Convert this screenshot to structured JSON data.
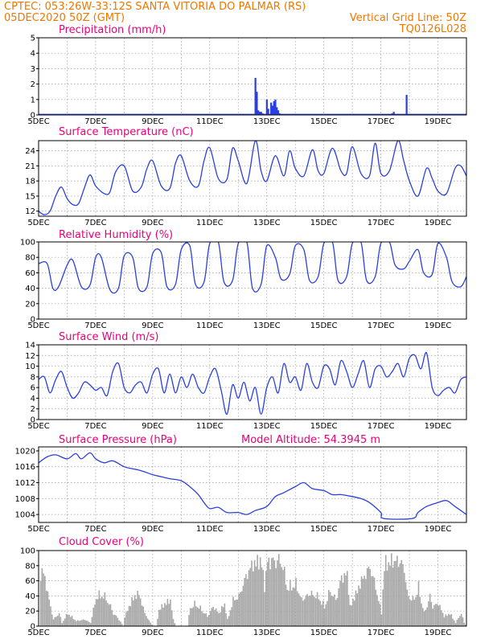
{
  "header": {
    "line1": "CPTEC:   053:26W-33:12S   SANTA VITORIA DO PALMAR (RS)",
    "line2_left": "05DEC2020 50Z (GMT)",
    "line2_right": "Vertical Grid Line: 50Z",
    "line3_right": "TQ0126L028"
  },
  "colors": {
    "series": "#2a3fe0",
    "cloud": "#a8a8a8",
    "header": "#ee7700",
    "title": "#e8007a",
    "grid": "#9a9a9a"
  },
  "chart_data": [
    {
      "id": "precip",
      "type": "bar",
      "title": "Precipitation (mm/h)",
      "ylim": [
        0,
        5
      ],
      "yticks": [
        "0",
        "1",
        "2",
        "3",
        "4",
        "5"
      ],
      "xticks": [
        "5DEC",
        "7DEC",
        "9DEC",
        "11DEC",
        "13DEC",
        "15DEC",
        "17DEC",
        "19DEC"
      ],
      "xlim_days": [
        5,
        20
      ],
      "x_days": [
        12.6,
        12.65,
        12.7,
        12.75,
        12.8,
        12.85,
        13.0,
        13.05,
        13.15,
        13.2,
        13.25,
        13.3,
        13.35,
        13.4,
        13.45,
        17.4,
        17.45,
        17.9
      ],
      "values": [
        2.4,
        1.5,
        0.3,
        0.2,
        0.2,
        0.1,
        1.0,
        0.4,
        0.8,
        0.6,
        0.9,
        1.0,
        0.5,
        0.3,
        0.1,
        0.1,
        0.2,
        1.3
      ]
    },
    {
      "id": "temp",
      "type": "line",
      "title": "Surface Temperature (nC)",
      "ylim": [
        11,
        26
      ],
      "yticks": [
        "12",
        "15",
        "18",
        "21",
        "24"
      ],
      "xticks": [
        "5DEC",
        "7DEC",
        "9DEC",
        "11DEC",
        "13DEC",
        "15DEC",
        "17DEC",
        "19DEC"
      ],
      "xlim_days": [
        5,
        20
      ],
      "x_days": [
        5.0,
        5.2,
        5.4,
        5.6,
        5.8,
        6.0,
        6.2,
        6.4,
        6.6,
        6.8,
        7.0,
        7.3,
        7.5,
        7.7,
        8.0,
        8.3,
        8.6,
        8.8,
        9.0,
        9.3,
        9.6,
        9.8,
        10.0,
        10.3,
        10.6,
        10.8,
        11.0,
        11.3,
        11.6,
        11.8,
        12.0,
        12.3,
        12.6,
        12.8,
        13.0,
        13.3,
        13.6,
        13.8,
        14.0,
        14.3,
        14.6,
        14.8,
        15.0,
        15.3,
        15.6,
        15.8,
        16.0,
        16.3,
        16.6,
        16.8,
        17.0,
        17.3,
        17.6,
        17.8,
        18.0,
        18.3,
        18.6,
        18.8,
        19.0,
        19.3,
        19.6,
        19.8,
        20.0
      ],
      "values": [
        12.0,
        11.3,
        12.0,
        15.0,
        16.8,
        14.5,
        13.3,
        13.5,
        16.5,
        19.2,
        17.0,
        15.5,
        15.8,
        19.8,
        21.0,
        16.0,
        16.8,
        20.5,
        22.0,
        17.0,
        16.5,
        21.5,
        23.0,
        18.0,
        17.0,
        22.0,
        24.6,
        18.5,
        18.3,
        24.5,
        22.0,
        17.5,
        26.0,
        20.0,
        18.0,
        23.0,
        19.0,
        24.0,
        20.5,
        19.0,
        24.2,
        20.0,
        19.5,
        24.5,
        20.0,
        19.5,
        24.8,
        19.5,
        19.0,
        25.5,
        19.5,
        20.0,
        26.0,
        22.0,
        18.0,
        15.0,
        20.5,
        18.5,
        16.0,
        15.5,
        20.5,
        21.0,
        19.0
      ]
    },
    {
      "id": "rh",
      "type": "line",
      "title": "Relative Humidity (%)",
      "ylim": [
        0,
        100
      ],
      "yticks": [
        "0",
        "20",
        "40",
        "60",
        "80",
        "100"
      ],
      "xticks": [
        "5DEC",
        "7DEC",
        "9DEC",
        "11DEC",
        "13DEC",
        "15DEC",
        "17DEC",
        "19DEC"
      ],
      "xlim_days": [
        5,
        20
      ],
      "x_days": [
        5.0,
        5.3,
        5.5,
        5.7,
        6.0,
        6.2,
        6.5,
        6.8,
        7.0,
        7.2,
        7.5,
        7.8,
        8.0,
        8.3,
        8.5,
        8.8,
        9.0,
        9.3,
        9.5,
        9.8,
        10.0,
        10.3,
        10.5,
        10.8,
        11.0,
        11.3,
        11.5,
        11.8,
        12.0,
        12.3,
        12.5,
        12.8,
        13.0,
        13.3,
        13.5,
        13.8,
        14.0,
        14.3,
        14.5,
        14.8,
        15.0,
        15.3,
        15.5,
        15.8,
        16.0,
        16.3,
        16.5,
        16.8,
        17.0,
        17.3,
        17.5,
        17.8,
        18.0,
        18.3,
        18.5,
        18.8,
        19.0,
        19.3,
        19.5,
        19.8,
        20.0
      ],
      "values": [
        72,
        72,
        40,
        42,
        70,
        76,
        42,
        44,
        80,
        80,
        38,
        40,
        82,
        80,
        40,
        42,
        85,
        86,
        42,
        45,
        90,
        95,
        45,
        48,
        98,
        100,
        48,
        50,
        98,
        100,
        40,
        45,
        95,
        80,
        52,
        58,
        95,
        90,
        50,
        55,
        98,
        100,
        50,
        55,
        98,
        100,
        50,
        55,
        98,
        100,
        70,
        65,
        75,
        90,
        60,
        58,
        98,
        80,
        48,
        42,
        55
      ]
    },
    {
      "id": "wind",
      "type": "line",
      "title": "Surface Wind (m/s)",
      "ylim": [
        0,
        14
      ],
      "yticks": [
        "0",
        "2",
        "4",
        "6",
        "8",
        "10",
        "12",
        "14"
      ],
      "xticks": [
        "5DEC",
        "7DEC",
        "9DEC",
        "11DEC",
        "13DEC",
        "15DEC",
        "17DEC",
        "19DEC"
      ],
      "xlim_days": [
        5,
        20
      ],
      "x_days": [
        5.0,
        5.2,
        5.4,
        5.6,
        5.8,
        6.0,
        6.2,
        6.4,
        6.6,
        6.8,
        7.0,
        7.2,
        7.4,
        7.6,
        7.8,
        8.0,
        8.2,
        8.4,
        8.6,
        8.8,
        9.0,
        9.2,
        9.4,
        9.6,
        9.8,
        10.0,
        10.2,
        10.4,
        10.6,
        10.8,
        11.0,
        11.2,
        11.4,
        11.6,
        11.8,
        12.0,
        12.2,
        12.4,
        12.6,
        12.8,
        13.0,
        13.2,
        13.4,
        13.6,
        13.8,
        14.0,
        14.2,
        14.4,
        14.6,
        14.8,
        15.0,
        15.2,
        15.4,
        15.6,
        15.8,
        16.0,
        16.2,
        16.4,
        16.6,
        16.8,
        17.0,
        17.2,
        17.4,
        17.6,
        17.8,
        18.0,
        18.2,
        18.4,
        18.6,
        18.8,
        19.0,
        19.2,
        19.4,
        19.6,
        19.8,
        20.0
      ],
      "values": [
        7.5,
        8.0,
        5.0,
        7.5,
        9.0,
        6.0,
        4.0,
        5.0,
        7.0,
        6.5,
        5.5,
        6.0,
        4.5,
        9.0,
        10.5,
        6.0,
        5.0,
        6.5,
        7.0,
        5.0,
        8.5,
        9.5,
        5.0,
        8.5,
        5.0,
        8.0,
        6.0,
        8.5,
        6.0,
        5.0,
        8.0,
        9.5,
        5.5,
        1.0,
        6.5,
        4.0,
        7.0,
        3.5,
        6.0,
        1.0,
        6.0,
        8.0,
        5.0,
        10.5,
        7.0,
        8.0,
        5.5,
        10.5,
        7.0,
        6.0,
        10.0,
        9.5,
        6.5,
        11.0,
        9.0,
        6.0,
        8.5,
        11.0,
        6.0,
        9.5,
        10.0,
        8.0,
        9.0,
        10.5,
        8.0,
        11.5,
        12.0,
        9.5,
        12.5,
        6.0,
        4.5,
        5.5,
        6.0,
        5.0,
        7.5,
        8.0
      ]
    },
    {
      "id": "pres",
      "type": "line",
      "title": "Surface Pressure (hPa)",
      "subtitle": "Model Altitude: 54.3945 m",
      "ylim": [
        1002,
        1021
      ],
      "yticks": [
        "1004",
        "1008",
        "1012",
        "1016",
        "1020"
      ],
      "xticks": [
        "5DEC",
        "7DEC",
        "9DEC",
        "11DEC",
        "13DEC",
        "15DEC",
        "17DEC",
        "19DEC"
      ],
      "xlim_days": [
        5,
        20
      ],
      "x_days": [
        5.0,
        5.3,
        5.6,
        6.0,
        6.3,
        6.5,
        6.8,
        7.0,
        7.3,
        7.6,
        8.0,
        8.3,
        8.6,
        9.0,
        9.3,
        9.6,
        10.0,
        10.3,
        10.6,
        10.8,
        11.0,
        11.3,
        11.6,
        12.0,
        12.3,
        12.6,
        13.0,
        13.3,
        13.6,
        14.0,
        14.3,
        14.6,
        15.0,
        15.3,
        15.6,
        16.0,
        16.3,
        16.6,
        17.0,
        17.1,
        18.1,
        18.3,
        18.6,
        19.0,
        19.3,
        19.6,
        20.0
      ],
      "values": [
        1017.0,
        1018.5,
        1019.0,
        1018.0,
        1019.3,
        1018.0,
        1019.5,
        1018.0,
        1017.0,
        1017.5,
        1016.0,
        1015.5,
        1015.0,
        1014.0,
        1013.5,
        1013.0,
        1012.5,
        1011.0,
        1009.0,
        1007.0,
        1005.5,
        1005.8,
        1004.5,
        1004.5,
        1004.0,
        1005.0,
        1006.0,
        1008.5,
        1009.5,
        1011.0,
        1012.0,
        1010.5,
        1010.0,
        1009.0,
        1009.0,
        1008.5,
        1008.0,
        1007.0,
        1004.5,
        1003.0,
        1003.0,
        1004.5,
        1006.0,
        1007.0,
        1007.5,
        1006.0,
        1004.0
      ]
    },
    {
      "id": "cloud",
      "type": "bar",
      "title": "Cloud Cover (%)",
      "ylim": [
        0,
        100
      ],
      "yticks": [
        "0",
        "20",
        "40",
        "60",
        "80",
        "100"
      ],
      "xticks": [
        "5DEC",
        "7DEC",
        "9DEC",
        "11DEC",
        "13DEC",
        "15DEC",
        "17DEC",
        "19DEC"
      ],
      "xlim_days": [
        5,
        20
      ],
      "step_days": 0.05,
      "envelope": [
        [
          5.0,
          0
        ],
        [
          5.05,
          80
        ],
        [
          5.15,
          85
        ],
        [
          5.3,
          50
        ],
        [
          5.5,
          10
        ],
        [
          5.7,
          20
        ],
        [
          5.8,
          5
        ],
        [
          6.0,
          20
        ],
        [
          6.3,
          8
        ],
        [
          6.6,
          10
        ],
        [
          6.8,
          5
        ],
        [
          7.0,
          45
        ],
        [
          7.2,
          50
        ],
        [
          7.4,
          40
        ],
        [
          7.6,
          20
        ],
        [
          7.8,
          10
        ],
        [
          7.95,
          0
        ],
        [
          8.0,
          15
        ],
        [
          8.3,
          45
        ],
        [
          8.5,
          50
        ],
        [
          8.7,
          20
        ],
        [
          8.9,
          5
        ],
        [
          9.0,
          0
        ],
        [
          9.1,
          0
        ],
        [
          9.2,
          25
        ],
        [
          9.4,
          35
        ],
        [
          9.6,
          40
        ],
        [
          9.7,
          10
        ],
        [
          9.8,
          0
        ],
        [
          10.2,
          0
        ],
        [
          10.3,
          30
        ],
        [
          10.5,
          35
        ],
        [
          10.7,
          25
        ],
        [
          10.9,
          15
        ],
        [
          11.1,
          30
        ],
        [
          11.3,
          20
        ],
        [
          11.5,
          35
        ],
        [
          11.6,
          10
        ],
        [
          11.8,
          40
        ],
        [
          12.0,
          45
        ],
        [
          12.2,
          70
        ],
        [
          12.4,
          90
        ],
        [
          12.5,
          95
        ],
        [
          12.6,
          100
        ],
        [
          12.8,
          100
        ],
        [
          12.9,
          60
        ],
        [
          13.0,
          100
        ],
        [
          13.3,
          100
        ],
        [
          13.5,
          100
        ],
        [
          13.7,
          60
        ],
        [
          14.0,
          65
        ],
        [
          14.2,
          40
        ],
        [
          14.5,
          50
        ],
        [
          14.8,
          45
        ],
        [
          15.0,
          30
        ],
        [
          15.2,
          55
        ],
        [
          15.4,
          40
        ],
        [
          15.6,
          75
        ],
        [
          15.8,
          80
        ],
        [
          15.9,
          30
        ],
        [
          16.1,
          50
        ],
        [
          16.3,
          70
        ],
        [
          16.6,
          90
        ],
        [
          16.8,
          60
        ],
        [
          17.0,
          20
        ],
        [
          17.1,
          95
        ],
        [
          17.3,
          100
        ],
        [
          17.6,
          100
        ],
        [
          17.8,
          90
        ],
        [
          17.9,
          50
        ],
        [
          18.1,
          40
        ],
        [
          18.3,
          60
        ],
        [
          18.5,
          20
        ],
        [
          18.7,
          45
        ],
        [
          18.8,
          30
        ],
        [
          19.0,
          35
        ],
        [
          19.2,
          15
        ],
        [
          19.4,
          20
        ],
        [
          19.6,
          5
        ],
        [
          19.8,
          20
        ],
        [
          19.9,
          5
        ],
        [
          20.0,
          0
        ]
      ]
    }
  ]
}
